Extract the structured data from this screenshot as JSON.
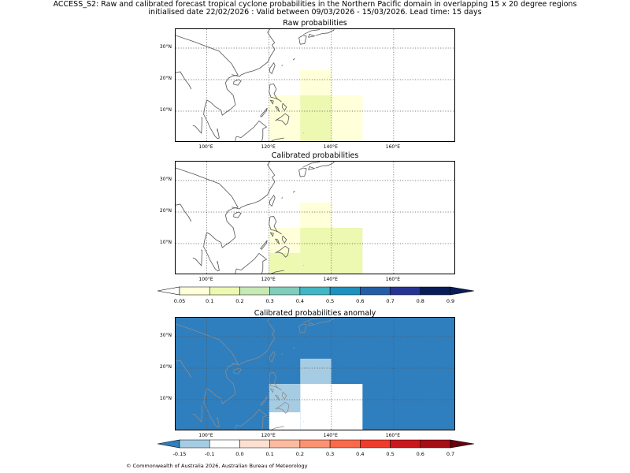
{
  "title": {
    "line1": "ACCESS_S2: Raw and calibrated forecast tropical cyclone probabilities in the Northern Pacific domain in overlapping 15 x 20 degree regions",
    "line2": "initialised date 22/02/2026 :  Valid between 09/03/2026 - 15/03/2026. Lead time: 15 days"
  },
  "panels": {
    "raw": {
      "title": "Raw probabilities",
      "cells": [
        {
          "lon_from": 120,
          "lon_to": 130,
          "lat_from": 0,
          "lat_to": 15,
          "color": "#ffffd9"
        },
        {
          "lon_from": 130,
          "lon_to": 140,
          "lat_from": 15,
          "lat_to": 23,
          "color": "#ffffd9"
        },
        {
          "lon_from": 130,
          "lon_to": 140,
          "lat_from": 0,
          "lat_to": 15,
          "color": "#edf8b1"
        },
        {
          "lon_from": 140,
          "lon_to": 150,
          "lat_from": 0,
          "lat_to": 15,
          "color": "#ffffd9"
        }
      ]
    },
    "calibrated": {
      "title": "Calibrated probabilities",
      "cells": [
        {
          "lon_from": 120,
          "lon_to": 130,
          "lat_from": 7,
          "lat_to": 15,
          "color": "#ffffd9"
        },
        {
          "lon_from": 130,
          "lon_to": 140,
          "lat_from": 15,
          "lat_to": 23,
          "color": "#ffffd9"
        },
        {
          "lon_from": 120,
          "lon_to": 130,
          "lat_from": 0,
          "lat_to": 7,
          "color": "#edf8b1"
        },
        {
          "lon_from": 130,
          "lon_to": 150,
          "lat_from": 0,
          "lat_to": 15,
          "color": "#edf8b1"
        }
      ]
    },
    "anomaly": {
      "title": "Calibrated probabilities anomaly",
      "background": "#2f7fbf",
      "cells": [
        {
          "lon_from": 130,
          "lon_to": 140,
          "lat_from": 15,
          "lat_to": 23,
          "color": "#a6cce3"
        },
        {
          "lon_from": 120,
          "lon_to": 130,
          "lat_from": 6,
          "lat_to": 15,
          "color": "#a6cce3"
        },
        {
          "lon_from": 120,
          "lon_to": 130,
          "lat_from": 0,
          "lat_to": 6,
          "color": "#ffffff"
        },
        {
          "lon_from": 130,
          "lon_to": 150,
          "lat_from": 0,
          "lat_to": 15,
          "color": "#ffffff"
        }
      ]
    }
  },
  "axes": {
    "lon_range": [
      90,
      180
    ],
    "lat_range": [
      0,
      36
    ],
    "lat_ticks": [
      {
        "value": 10,
        "label": "10°N"
      },
      {
        "value": 20,
        "label": "20°N"
      },
      {
        "value": 30,
        "label": "30°N"
      }
    ],
    "lon_ticks": [
      {
        "value": 100,
        "label": "100°E"
      },
      {
        "value": 120,
        "label": "120°E"
      },
      {
        "value": 140,
        "label": "140°E"
      },
      {
        "value": 160,
        "label": "160°E"
      }
    ]
  },
  "colorbar_prob": {
    "labels": [
      "0.05",
      "0.1",
      "0.2",
      "0.3",
      "0.4",
      "0.5",
      "0.6",
      "0.7",
      "0.8",
      "0.9"
    ],
    "colors": [
      "#ffffd9",
      "#edf8b1",
      "#c7e9b4",
      "#7fcdbb",
      "#41b6c4",
      "#1d91c0",
      "#225ea8",
      "#253494",
      "#081d58"
    ],
    "under_color": "#ffffff",
    "over_color": "#081d58"
  },
  "colorbar_anom": {
    "labels": [
      "-0.15",
      "-0.1",
      "0.0",
      "0.1",
      "0.2",
      "0.3",
      "0.4",
      "0.5",
      "0.6",
      "0.7"
    ],
    "colors": [
      "#a6cce3",
      "#ffffff",
      "#fee0d2",
      "#fcbba1",
      "#fc9272",
      "#fb6a4a",
      "#ef3b2c",
      "#cb181d",
      "#a50f15"
    ],
    "under_color": "#2f7fbf",
    "over_color": "#67000d"
  },
  "credit": "© Commonwealth of Australia 2026, Australian Bureau of Meteorology"
}
